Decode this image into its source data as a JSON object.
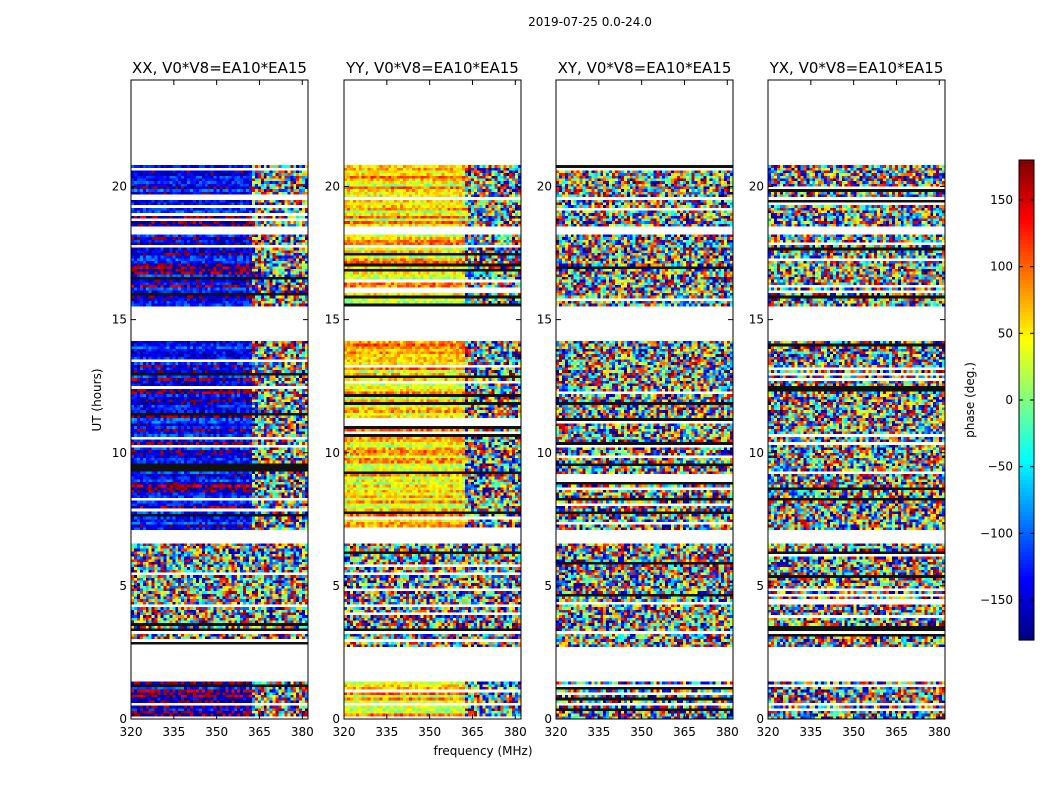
{
  "chart_data": {
    "type": "heatmap",
    "suptitle": "2019-07-25 0.0-24.0",
    "panels": [
      {
        "title": "XX, V0*V8=EA10*EA15",
        "polarization": "XX",
        "coherent": true,
        "base_phase": -150
      },
      {
        "title": "YY, V0*V8=EA10*EA15",
        "polarization": "YY",
        "coherent": true,
        "base_phase": 60
      },
      {
        "title": "XY, V0*V8=EA10*EA15",
        "polarization": "XY",
        "coherent": false,
        "base_phase": 0
      },
      {
        "title": "YX, V0*V8=EA10*EA15",
        "polarization": "YX",
        "coherent": false,
        "base_phase": 0
      }
    ],
    "xlabel": "frequency (MHz)",
    "ylabel": "UT (hours)",
    "xlim": [
      320,
      382
    ],
    "xticks": [
      "320",
      "335",
      "350",
      "365",
      "380"
    ],
    "xtick_values": [
      320,
      335,
      350,
      365,
      380
    ],
    "ylim": [
      0,
      24
    ],
    "yticks": [
      "0",
      "5",
      "10",
      "15",
      "20"
    ],
    "ytick_values": [
      0,
      5,
      10,
      15,
      20
    ],
    "data_segments_hours": [
      [
        0.0,
        0.5
      ],
      [
        0.6,
        1.4
      ],
      [
        2.7,
        3.2
      ],
      [
        3.3,
        6.6
      ],
      [
        7.1,
        14.2
      ],
      [
        15.5,
        18.2
      ],
      [
        18.5,
        19.5
      ],
      [
        19.6,
        20.8
      ]
    ],
    "colorbar": {
      "label": "phase (deg.)",
      "range": [
        -180,
        180
      ],
      "ticks": [
        "−150",
        "−100",
        "−50",
        "0",
        "50",
        "100",
        "150"
      ],
      "tick_values": [
        -150,
        -100,
        -50,
        0,
        50,
        100,
        150
      ],
      "colormap": "jet"
    }
  }
}
